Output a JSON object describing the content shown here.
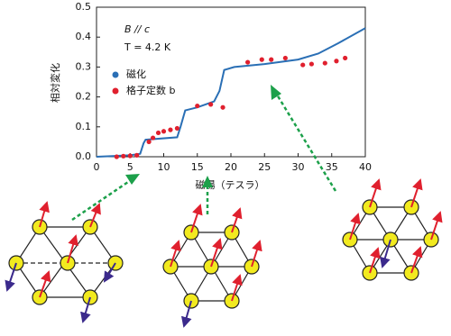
{
  "chart_data": {
    "type": "line",
    "annotations": [
      "B // c",
      "T = 4.2 K"
    ],
    "xlabel": "磁場（テスラ）",
    "ylabel": "相対変化",
    "xlim": [
      0,
      40
    ],
    "ylim": [
      0,
      0.5
    ],
    "xticks": [
      0,
      5,
      10,
      15,
      20,
      25,
      30,
      35,
      40
    ],
    "yticks": [
      {
        "value": 0,
        "label": "0.0"
      },
      0.1,
      0.2,
      0.3,
      0.4,
      0.5
    ],
    "series": [
      {
        "name": "磁化",
        "color": "#2a6fb5",
        "style": "line",
        "x": [
          0,
          5,
          6.5,
          7,
          7.3,
          12,
          12.5,
          13.2,
          15,
          17.5,
          18.3,
          19,
          20.5,
          25,
          30,
          33,
          36,
          40
        ],
        "values": [
          0,
          0.005,
          0.01,
          0.045,
          0.057,
          0.065,
          0.1,
          0.155,
          0.165,
          0.185,
          0.22,
          0.29,
          0.3,
          0.31,
          0.325,
          0.345,
          0.38,
          0.43
        ]
      },
      {
        "name": "格子定数 b",
        "color": "#e0202e",
        "style": "dots",
        "x": [
          3,
          4,
          5,
          6,
          7.8,
          8.4,
          9.2,
          10,
          11,
          12,
          15,
          17,
          18.8,
          22.5,
          24.6,
          26,
          28.1,
          30.7,
          32,
          34,
          35.7,
          37
        ],
        "values": [
          0,
          0.002,
          0.003,
          0.005,
          0.05,
          0.063,
          0.08,
          0.085,
          0.09,
          0.095,
          0.17,
          0.175,
          0.165,
          0.316,
          0.325,
          0.325,
          0.33,
          0.307,
          0.31,
          0.313,
          0.32,
          0.33
        ]
      }
    ]
  }
}
